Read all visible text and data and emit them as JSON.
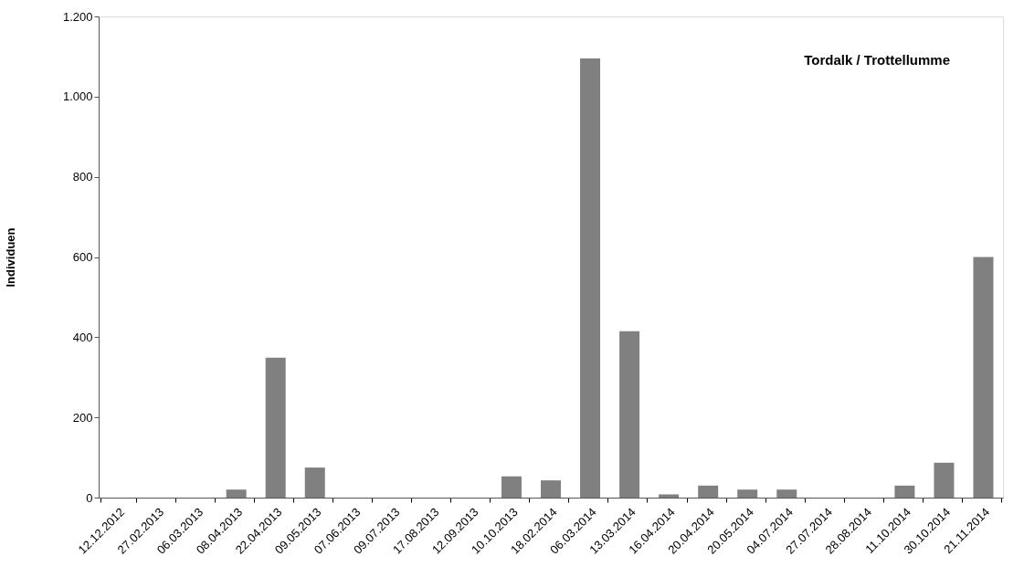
{
  "chart_data": {
    "type": "bar",
    "title": "Tordalk / Trottellumme",
    "ylabel": "Individuen",
    "categories": [
      "12.12.2012",
      "27.02.2013",
      "06.03.2013",
      "08.04.2013",
      "22.04.2013",
      "09.05.2013",
      "07.06.2013",
      "09.07.2013",
      "17.08.2013",
      "12.09.2013",
      "10.10.2013",
      "18.02.2014",
      "06.03.2014",
      "13.03.2014",
      "16.04.2014",
      "20.04.2014",
      "20.05.2014",
      "04.07.2014",
      "27.07.2014",
      "28.08.2014",
      "11.10.2014",
      "30.10.2014",
      "21.11.2014"
    ],
    "values": [
      0,
      0,
      0,
      20,
      349,
      75,
      0,
      0,
      0,
      0,
      53,
      43,
      1095,
      415,
      8,
      30,
      20,
      20,
      0,
      0,
      30,
      87,
      600
    ],
    "color": "#808080",
    "ylim": [
      0,
      1200
    ],
    "yticks": [
      0,
      200,
      400,
      600,
      800,
      {
        "value": 1000,
        "label": "1.000"
      },
      {
        "value": 1200,
        "label": "1.200"
      }
    ],
    "grid": false
  }
}
